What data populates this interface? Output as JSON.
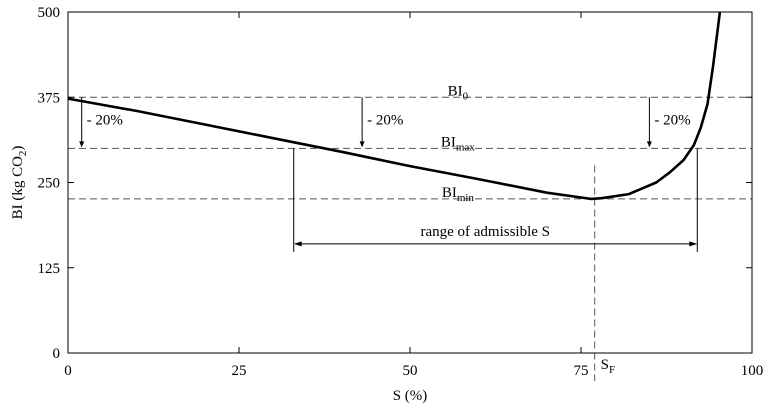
{
  "chart_data": {
    "type": "line",
    "xlabel": "S (%)",
    "ylabel_main": "BI (kg CO",
    "ylabel_sub": "2",
    "ylabel_close": ")",
    "xlim": [
      0,
      100
    ],
    "ylim": [
      0,
      500
    ],
    "xticks": [
      0,
      25,
      50,
      75,
      100
    ],
    "yticks": [
      0,
      125,
      250,
      375,
      500
    ],
    "grid": false,
    "series": [
      {
        "x": [
          0,
          10,
          20,
          30,
          40,
          50,
          60,
          70,
          75,
          76.5,
          78,
          82,
          86,
          88,
          90,
          91.5,
          92.5,
          93.5,
          94.3,
          95.3
        ],
        "y": [
          373,
          355,
          335,
          315,
          295,
          274,
          255,
          235,
          228,
          226,
          227,
          233,
          250,
          265,
          283,
          305,
          330,
          365,
          420,
          500
        ]
      }
    ],
    "reference_lines": [
      {
        "label": "BI",
        "sub": "0",
        "y": 375
      },
      {
        "label": "BI",
        "sub": "max",
        "y": 300
      },
      {
        "label": "BI",
        "sub": "min",
        "y": 226
      }
    ],
    "reduction_arrows": [
      {
        "x": 2,
        "label": "- 20%"
      },
      {
        "x": 43,
        "label": "- 20%"
      },
      {
        "x": 85,
        "label": "- 20%"
      }
    ],
    "admissible_range": {
      "x_start": 33,
      "x_end": 92,
      "y": 160,
      "label": "range of admissible  S"
    },
    "optimum": {
      "x": 77,
      "label": "S",
      "sub": "F"
    }
  }
}
